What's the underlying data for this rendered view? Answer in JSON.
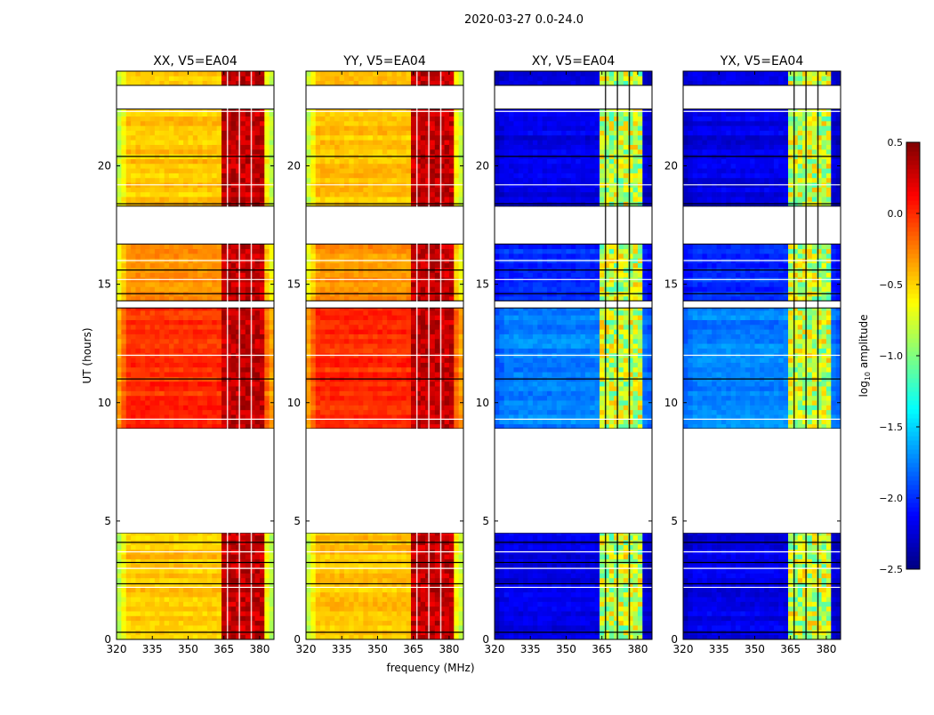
{
  "chart_data": {
    "type": "heatmap",
    "title": "2020-03-27 0.0-24.0",
    "xlabel": "frequency (MHz)",
    "ylabel": "UT (hours)",
    "xlim": [
      320,
      386
    ],
    "ylim": [
      0,
      24
    ],
    "xticks": [
      "320",
      "335",
      "350",
      "365",
      "380"
    ],
    "yticks": [
      "0",
      "5",
      "10",
      "15",
      "20"
    ],
    "colorbar": {
      "label": "log10 amplitude",
      "label_main": "log",
      "label_sub": "10",
      "label_rest": " amplitude",
      "range": [
        -2.5,
        0.5
      ],
      "ticks": [
        "0.5",
        "0.0",
        "−0.5",
        "−1.0",
        "−1.5",
        "−2.0",
        "−2.5"
      ],
      "colormap": "jet"
    },
    "observed_segments_hours": [
      [
        0,
        4.5
      ],
      [
        8.9,
        14.0
      ],
      [
        14.3,
        16.7
      ],
      [
        18.3,
        22.4
      ],
      [
        23.4,
        24.0
      ]
    ],
    "flagged_lines_hours": [
      0.3,
      2.2,
      2.35,
      3.0,
      3.25,
      3.7,
      4.1,
      9.3,
      11.0,
      12.0,
      14.6,
      15.2,
      15.6,
      16.0,
      18.4,
      19.2,
      20.4,
      22.3
    ],
    "rfi_band_mhz": [
      363,
      381
    ],
    "panels": [
      {
        "title": "XX, V5=EA04",
        "baseline": [
          -0.45,
          0.0,
          -0.3,
          -0.45,
          -0.45
        ],
        "rfi_level": 0.3
      },
      {
        "title": "YY, V5=EA04",
        "baseline": [
          -0.45,
          0.0,
          -0.3,
          -0.45,
          -0.45
        ],
        "rfi_level": 0.3
      },
      {
        "title": "XY, V5=EA04",
        "baseline": [
          -2.2,
          -1.75,
          -2.0,
          -2.2,
          -2.2
        ],
        "rfi_level": -0.8
      },
      {
        "title": "YX, V5=EA04",
        "baseline": [
          -2.2,
          -1.75,
          -2.0,
          -2.2,
          -2.2
        ],
        "rfi_level": -0.8
      }
    ]
  }
}
